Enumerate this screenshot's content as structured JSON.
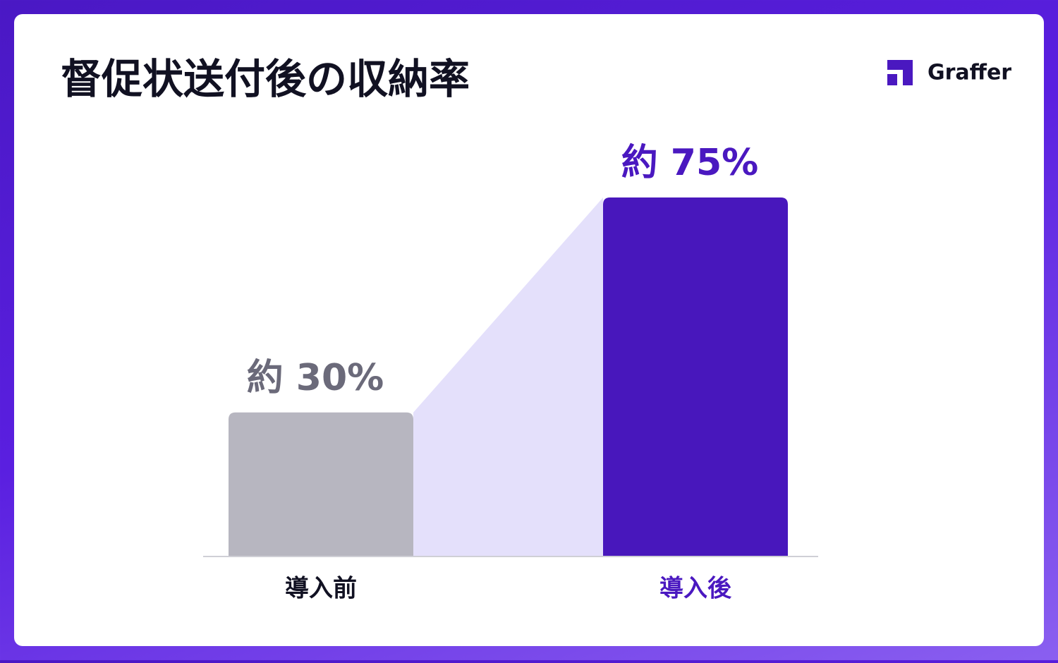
{
  "brand": "Graffer",
  "chart_data": {
    "type": "bar",
    "title": "督促状送付後の収納率",
    "categories": [
      "導入前",
      "導入後"
    ],
    "values": [
      30,
      75
    ],
    "value_labels": [
      "約 30%",
      "約 75%"
    ],
    "colors": [
      "#b7b6c0",
      "#4817bc"
    ],
    "label_colors": [
      "#6b6a7a",
      "#4a18c0"
    ],
    "category_colors": [
      "#111122",
      "#4a18c0"
    ],
    "connector_color": "#e4e0fb"
  }
}
